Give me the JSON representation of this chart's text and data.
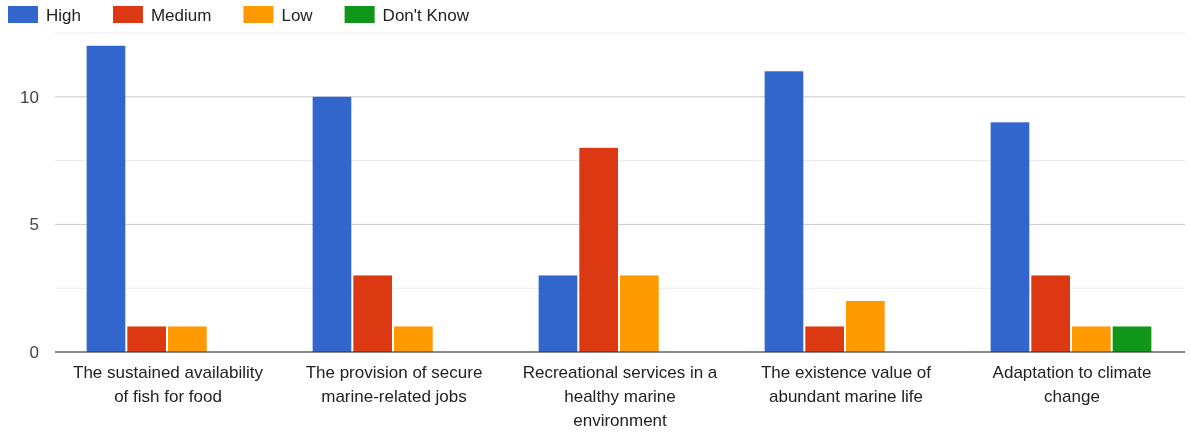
{
  "chart_data": {
    "type": "bar",
    "categories": [
      "The sustained availability of fish for food",
      "The provision of secure marine-related jobs",
      "Recreational services in a healthy marine environment",
      "The existence value of abundant marine life",
      "Adaptation to climate change"
    ],
    "series": [
      {
        "name": "High",
        "color": "#3366cc",
        "values": [
          12,
          10,
          3,
          11,
          9
        ]
      },
      {
        "name": "Medium",
        "color": "#dc3912",
        "values": [
          1,
          3,
          8,
          1,
          3
        ]
      },
      {
        "name": "Low",
        "color": "#ff9900",
        "values": [
          1,
          1,
          3,
          2,
          1
        ]
      },
      {
        "name": "Don't Know",
        "color": "#109618",
        "values": [
          0,
          0,
          0,
          0,
          1
        ]
      }
    ],
    "ylim": [
      0,
      12.5
    ],
    "yticks": [
      0,
      {
        "value": 2.5,
        "label": null
      },
      5,
      {
        "value": 7.5,
        "label": null
      },
      10,
      {
        "value": 12.5,
        "label": null
      }
    ],
    "grid": "y",
    "legend": "top left"
  }
}
